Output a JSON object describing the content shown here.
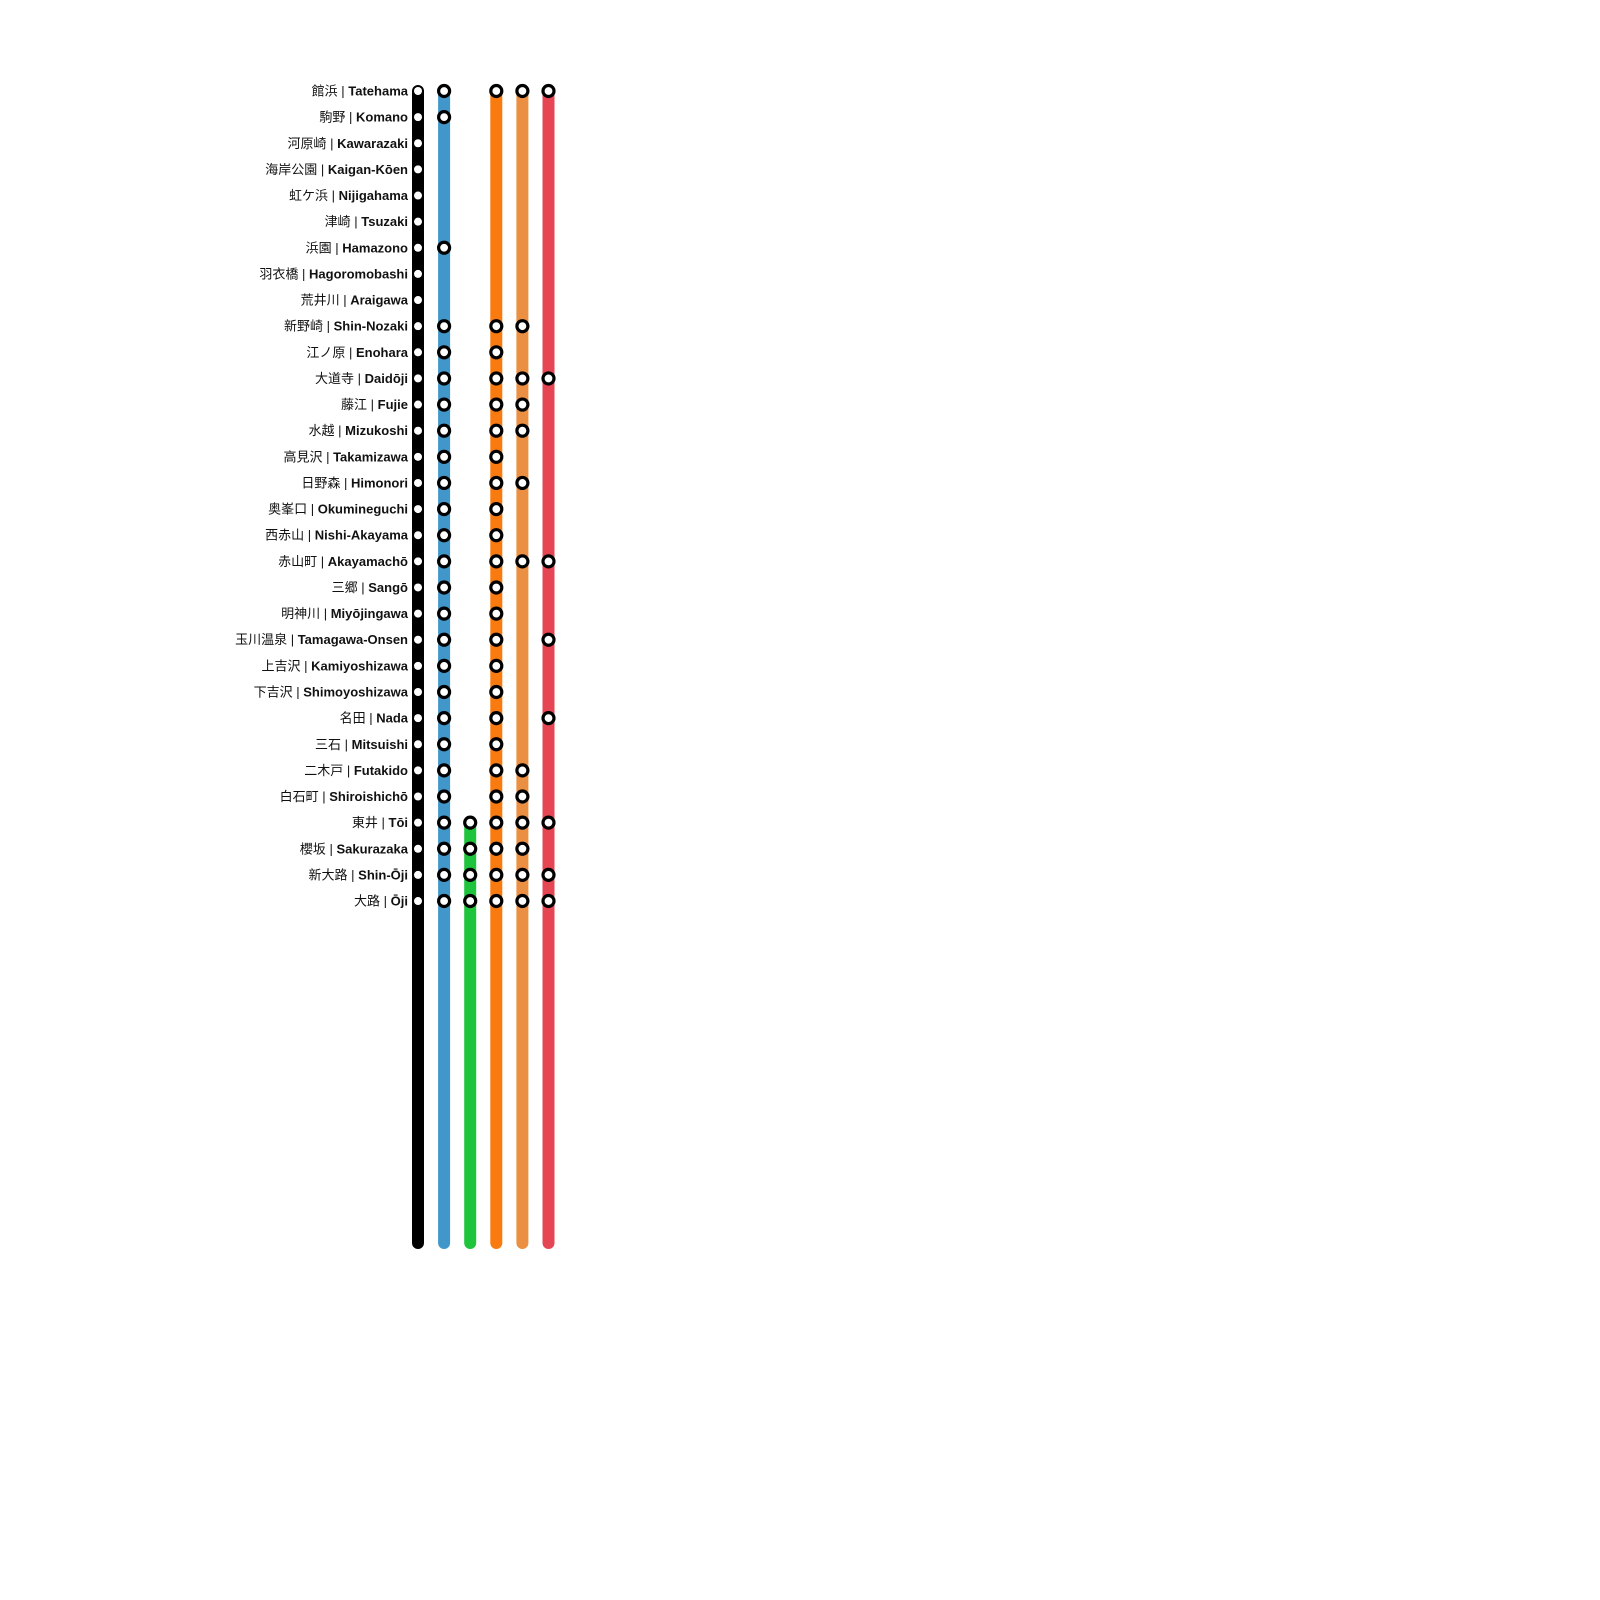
{
  "stations": [
    {
      "ja": "館浜",
      "en": "Tatehama"
    },
    {
      "ja": "駒野",
      "en": "Komano"
    },
    {
      "ja": "河原崎",
      "en": "Kawarazaki"
    },
    {
      "ja": "海岸公園",
      "en": "Kaigan-Kōen"
    },
    {
      "ja": "虹ケ浜",
      "en": "Nijigahama"
    },
    {
      "ja": "津崎",
      "en": "Tsuzaki"
    },
    {
      "ja": "浜園",
      "en": "Hamazono"
    },
    {
      "ja": "羽衣橋",
      "en": "Hagoromobashi"
    },
    {
      "ja": "荒井川",
      "en": "Araigawa"
    },
    {
      "ja": "新野崎",
      "en": "Shin-Nozaki"
    },
    {
      "ja": "江ノ原",
      "en": "Enohara"
    },
    {
      "ja": "大道寺",
      "en": "Daidōji"
    },
    {
      "ja": "藤江",
      "en": "Fujie"
    },
    {
      "ja": "水越",
      "en": "Mizukoshi"
    },
    {
      "ja": "高見沢",
      "en": "Takamizawa"
    },
    {
      "ja": "日野森",
      "en": "Himonori"
    },
    {
      "ja": "奥峯口",
      "en": "Okumineguchi"
    },
    {
      "ja": "西赤山",
      "en": "Nishi-Akayama"
    },
    {
      "ja": "赤山町",
      "en": "Akayamachō"
    },
    {
      "ja": "三郷",
      "en": "Sangō"
    },
    {
      "ja": "明神川",
      "en": "Miyōjingawa"
    },
    {
      "ja": "玉川温泉",
      "en": "Tamagawa-Onsen"
    },
    {
      "ja": "上吉沢",
      "en": "Kamiyoshizawa"
    },
    {
      "ja": "下吉沢",
      "en": "Shimoyoshizawa"
    },
    {
      "ja": "名田",
      "en": "Nada"
    },
    {
      "ja": "三石",
      "en": "Mitsuishi"
    },
    {
      "ja": "二木戸",
      "en": "Futakido"
    },
    {
      "ja": "白石町",
      "en": "Shiroishichō"
    },
    {
      "ja": "東井",
      "en": "Tōi"
    },
    {
      "ja": "櫻坂",
      "en": "Sakurazaka"
    },
    {
      "ja": "新大路",
      "en": "Shin-Ōji"
    },
    {
      "ja": "大路",
      "en": "Ōji"
    }
  ],
  "separator": "|",
  "services": [
    {
      "color": "#000000",
      "start": 0,
      "stops": "all",
      "marker": "small"
    },
    {
      "color": "#4196ca",
      "start": 0,
      "stops": [
        0,
        1,
        6,
        9,
        10,
        11,
        12,
        13,
        14,
        15,
        16,
        17,
        18,
        19,
        20,
        21,
        22,
        23,
        24,
        25,
        26,
        27,
        28,
        29,
        30,
        31
      ]
    },
    {
      "color": "#1fc43d",
      "start": 28,
      "stops": [
        28,
        29,
        30,
        31
      ]
    },
    {
      "color": "#f97b10",
      "start": 0,
      "stops": [
        0,
        9,
        10,
        11,
        12,
        13,
        14,
        15,
        16,
        17,
        18,
        19,
        20,
        21,
        22,
        23,
        24,
        25,
        26,
        27,
        28,
        29,
        30,
        31
      ]
    },
    {
      "color": "#eb8f42",
      "start": 0,
      "stops": [
        0,
        9,
        11,
        12,
        13,
        15,
        18,
        26,
        27,
        28,
        29,
        30,
        31
      ]
    },
    {
      "color": "#e64654",
      "start": 0,
      "stops": [
        0,
        11,
        18,
        21,
        24,
        28,
        30,
        31
      ]
    }
  ]
}
